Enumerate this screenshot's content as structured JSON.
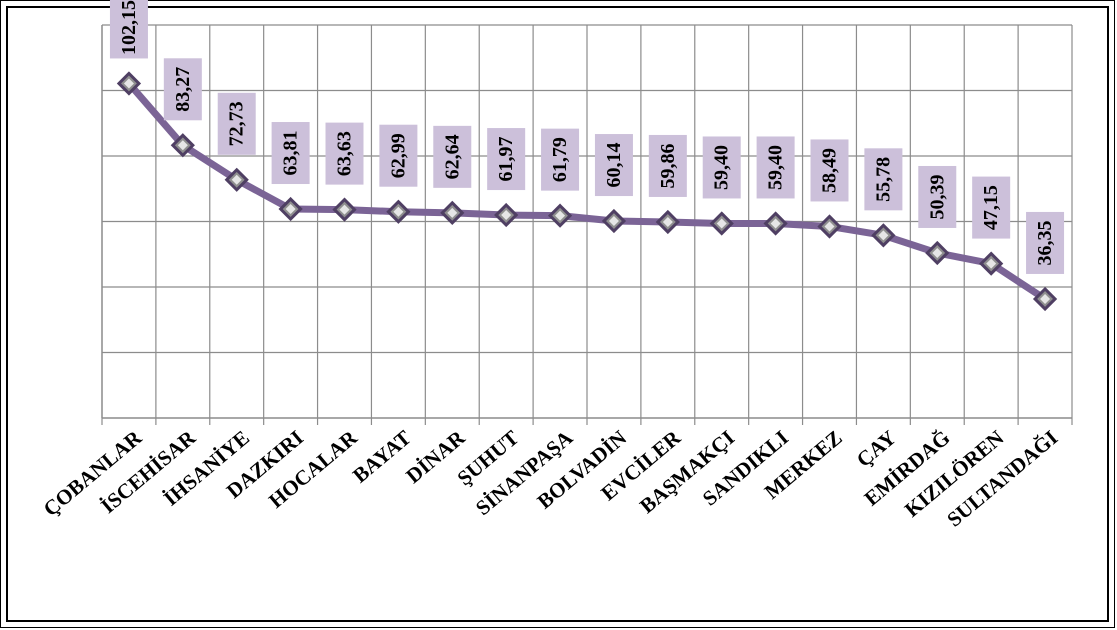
{
  "chart_data": {
    "type": "line",
    "title": "",
    "xlabel": "",
    "ylabel": "",
    "categories": [
      "ÇOBANLAR",
      "İSCEHİSAR",
      "İHSANİYE",
      "DAZKIRI",
      "HOCALAR",
      "BAYAT",
      "DİNAR",
      "ŞUHUT",
      "SİNANPAŞA",
      "BOLVADİN",
      "EVCİLER",
      "BAŞMAKÇI",
      "SANDIKLI",
      "MERKEZ",
      "ÇAY",
      "EMİRDAĞ",
      "KIZILÖREN",
      "SULTANDAĞI"
    ],
    "values": [
      102.15,
      83.27,
      72.73,
      63.81,
      63.63,
      62.99,
      62.64,
      61.97,
      61.79,
      60.14,
      59.86,
      59.4,
      59.4,
      58.49,
      55.78,
      50.39,
      47.15,
      36.35
    ],
    "value_labels": [
      "102,15",
      "83,27",
      "72,73",
      "63,81",
      "63,63",
      "62,99",
      "62,64",
      "61,97",
      "61,79",
      "60,14",
      "59,86",
      "59,40",
      "59,40",
      "58,49",
      "55,78",
      "50,39",
      "47,15",
      "36,35"
    ],
    "ylim": [
      0,
      120
    ],
    "y_axis_labels_visible": false,
    "grid": true,
    "legend": "none",
    "colors": {
      "line": "#7b6496",
      "marker_fill": "#8f8f8f",
      "marker_edge": "#4f3f63",
      "label_background": "#ccc0da",
      "grid": "#8c8c8c"
    }
  }
}
